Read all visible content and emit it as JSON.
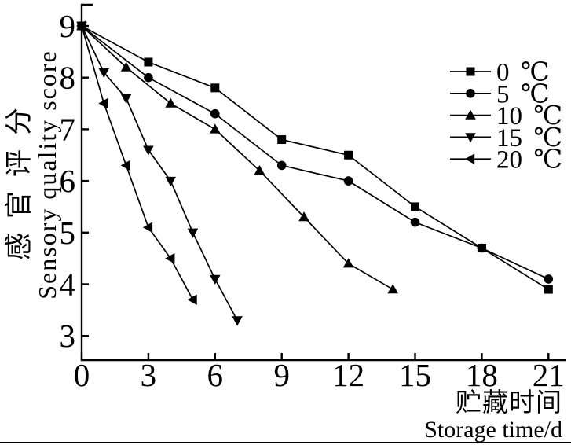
{
  "figure": {
    "ink_color": "#000000",
    "background_color": "#ffffff"
  },
  "chart_data": {
    "type": "line",
    "title": "",
    "xlabel_zh": "贮藏时间",
    "xlabel_en": "Storage time/d",
    "ylabel_zh": "感官评分",
    "ylabel_en": "Sensory quality score",
    "xlim": [
      0,
      21
    ],
    "ylim": [
      3,
      9
    ],
    "x_ticks": [
      "0",
      "3",
      "6",
      "9",
      "12",
      "15",
      "18",
      "21"
    ],
    "y_ticks": [
      "9",
      "8",
      "7",
      "6",
      "5",
      "4",
      "3"
    ],
    "grid": false,
    "legend_position": "upper-right-inside",
    "series": [
      {
        "name": "0 ℃",
        "marker": "square",
        "x": [
          0,
          3,
          6,
          9,
          12,
          15,
          18,
          21
        ],
        "y": [
          9.0,
          8.3,
          7.8,
          6.8,
          6.5,
          5.5,
          4.7,
          3.9
        ]
      },
      {
        "name": "5 ℃",
        "marker": "circle",
        "x": [
          0,
          3,
          6,
          9,
          12,
          15,
          18,
          21
        ],
        "y": [
          9.0,
          8.0,
          7.3,
          6.3,
          6.0,
          5.2,
          4.7,
          4.1
        ]
      },
      {
        "name": "10 ℃",
        "marker": "triangle-up",
        "x": [
          0,
          2,
          4,
          6,
          8,
          10,
          12,
          14
        ],
        "y": [
          9.0,
          8.2,
          7.5,
          7.0,
          6.2,
          5.3,
          4.4,
          3.9
        ]
      },
      {
        "name": "15 ℃",
        "marker": "triangle-down",
        "x": [
          0,
          1,
          2,
          3,
          4,
          5,
          6,
          7
        ],
        "y": [
          9.0,
          8.1,
          7.6,
          6.6,
          6.0,
          5.0,
          4.1,
          3.3
        ]
      },
      {
        "name": "20 ℃",
        "marker": "triangle-left",
        "x": [
          0,
          1,
          2,
          3,
          4,
          5
        ],
        "y": [
          9.0,
          7.5,
          6.3,
          5.1,
          4.5,
          3.7
        ]
      }
    ]
  }
}
